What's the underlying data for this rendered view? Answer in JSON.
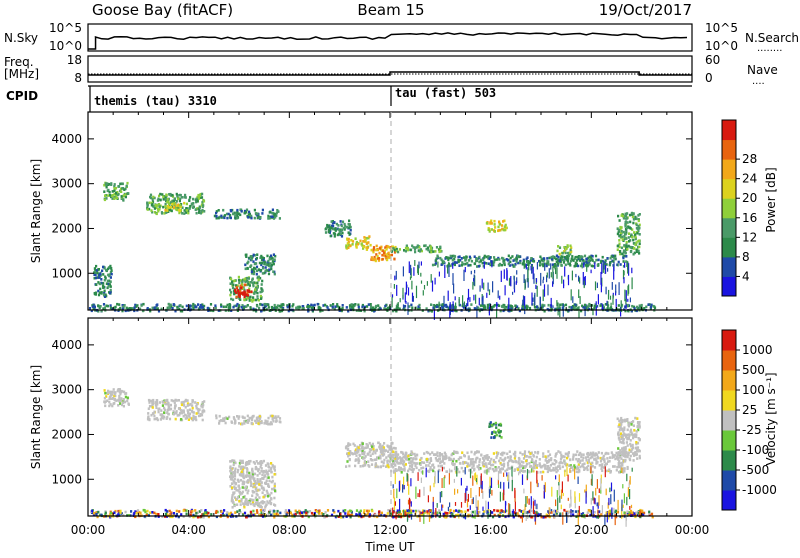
{
  "header": {
    "station": "Goose Bay (fitACF)",
    "beam": "Beam 15",
    "date": "19/Oct/2017"
  },
  "strip_panels": {
    "nsky": {
      "left_label": "N.Sky",
      "right_label": "N.Search",
      "right_label_marker": "........",
      "left_ticks": [
        "10^5",
        "10^0"
      ],
      "right_ticks": [
        "10^5",
        "10^0"
      ]
    },
    "freq": {
      "left_label_line1": "Freq.",
      "left_label_line2": "[MHz]",
      "right_label": "Nave",
      "right_label_marker": "....",
      "left_ticks": [
        "18",
        "8"
      ],
      "right_ticks": [
        "60",
        "0"
      ]
    },
    "cpid": {
      "label": "CPID",
      "segments": [
        {
          "name": "themis (tau) 3310",
          "start_hour": 0.0
        },
        {
          "name": "tau (fast) 503",
          "start_hour": 12.0
        }
      ]
    }
  },
  "colors": {
    "line": "#000000",
    "dashed_marker": "#bbbbbb",
    "ground_scatter": "#c0c0c0"
  },
  "chart_data": [
    {
      "type": "heatmap",
      "panel": "power",
      "xlabel": "",
      "ylabel": "Slant Range [km]",
      "xlim": [
        0,
        24
      ],
      "ylim": [
        180,
        4600
      ],
      "y_ticks": [
        1000,
        2000,
        3000,
        4000
      ],
      "colorbar": {
        "label": "Power [dB]",
        "ticks": [
          "4",
          "8",
          "12",
          "16",
          "20",
          "24",
          "28"
        ],
        "colors": [
          "#1a14e0",
          "#1f4aa8",
          "#2c8a4a",
          "#4a9a68",
          "#8fcf3a",
          "#dcd21e",
          "#f2a81a",
          "#e8640f",
          "#d81a10"
        ]
      },
      "echo_regions": [
        {
          "t": [
            0.6,
            1.6
          ],
          "r": [
            2650,
            3050
          ],
          "level": 3
        },
        {
          "t": [
            2.3,
            4.6
          ],
          "r": [
            2350,
            2800
          ],
          "level": 3
        },
        {
          "t": [
            3.0,
            3.8
          ],
          "r": [
            2420,
            2600
          ],
          "level": 5
        },
        {
          "t": [
            5.0,
            7.6
          ],
          "r": [
            2250,
            2450
          ],
          "level": 2
        },
        {
          "t": [
            5.6,
            6.9
          ],
          "r": [
            400,
            950
          ],
          "level": 3
        },
        {
          "t": [
            5.8,
            6.5
          ],
          "r": [
            500,
            780
          ],
          "level": 8
        },
        {
          "t": [
            6.2,
            7.4
          ],
          "r": [
            1000,
            1450
          ],
          "level": 2
        },
        {
          "t": [
            0.2,
            0.9
          ],
          "r": [
            500,
            1200
          ],
          "level": 2
        },
        {
          "t": [
            9.3,
            10.4
          ],
          "r": [
            1850,
            2200
          ],
          "level": 2
        },
        {
          "t": [
            10.2,
            11.2
          ],
          "r": [
            1550,
            1850
          ],
          "level": 5
        },
        {
          "t": [
            11.2,
            12.2
          ],
          "r": [
            1300,
            1650
          ],
          "level": 6
        },
        {
          "t": [
            12.0,
            14.0
          ],
          "r": [
            1500,
            1650
          ],
          "level": 3
        },
        {
          "t": [
            13.6,
            21.4
          ],
          "r": [
            1180,
            1420
          ],
          "level": 2
        },
        {
          "t": [
            15.8,
            16.6
          ],
          "r": [
            1950,
            2200
          ],
          "level": 5
        },
        {
          "t": [
            18.6,
            19.2
          ],
          "r": [
            1450,
            1650
          ],
          "level": 4
        },
        {
          "t": [
            21.0,
            21.9
          ],
          "r": [
            1450,
            2400
          ],
          "level": 3
        },
        {
          "t": [
            0.0,
            22.5
          ],
          "r": [
            180,
            340
          ],
          "level": 2
        }
      ]
    },
    {
      "type": "heatmap",
      "panel": "velocity",
      "xlabel": "Time UT",
      "ylabel": "Slant Range [km]",
      "xlim": [
        0,
        24
      ],
      "ylim": [
        180,
        4600
      ],
      "x_ticks": [
        "00:00",
        "04:00",
        "08:00",
        "12:00",
        "16:00",
        "20:00",
        "00:00"
      ],
      "y_ticks": [
        1000,
        2000,
        3000,
        4000
      ],
      "colorbar": {
        "label": "Velocity [m s⁻¹]",
        "ticks": [
          "1000",
          "500",
          "100",
          "25",
          "-25",
          "-100",
          "-500",
          "-1000"
        ],
        "colors": [
          "#1a14e0",
          "#1f4aa8",
          "#2c8a4a",
          "#6ac83a",
          "#c0c0c0",
          "#f0d820",
          "#f2a81a",
          "#e8640f",
          "#d81a10"
        ]
      },
      "echo_regions": [
        {
          "t": [
            0.6,
            1.6
          ],
          "r": [
            2650,
            3050
          ],
          "level": 4
        },
        {
          "t": [
            2.3,
            4.6
          ],
          "r": [
            2350,
            2800
          ],
          "level": 4
        },
        {
          "t": [
            5.0,
            7.6
          ],
          "r": [
            2250,
            2450
          ],
          "level": 4
        },
        {
          "t": [
            5.6,
            7.4
          ],
          "r": [
            400,
            1450
          ],
          "level": 4
        },
        {
          "t": [
            10.2,
            12.2
          ],
          "r": [
            1300,
            1850
          ],
          "level": 4
        },
        {
          "t": [
            12.0,
            21.4
          ],
          "r": [
            1180,
            1650
          ],
          "level": 4
        },
        {
          "t": [
            15.9,
            16.4
          ],
          "r": [
            1950,
            2300
          ],
          "level": 2
        },
        {
          "t": [
            21.0,
            21.9
          ],
          "r": [
            1450,
            2400
          ],
          "level": 4
        },
        {
          "t": [
            0.0,
            22.5
          ],
          "r": [
            180,
            340
          ],
          "level": 6
        }
      ]
    }
  ]
}
